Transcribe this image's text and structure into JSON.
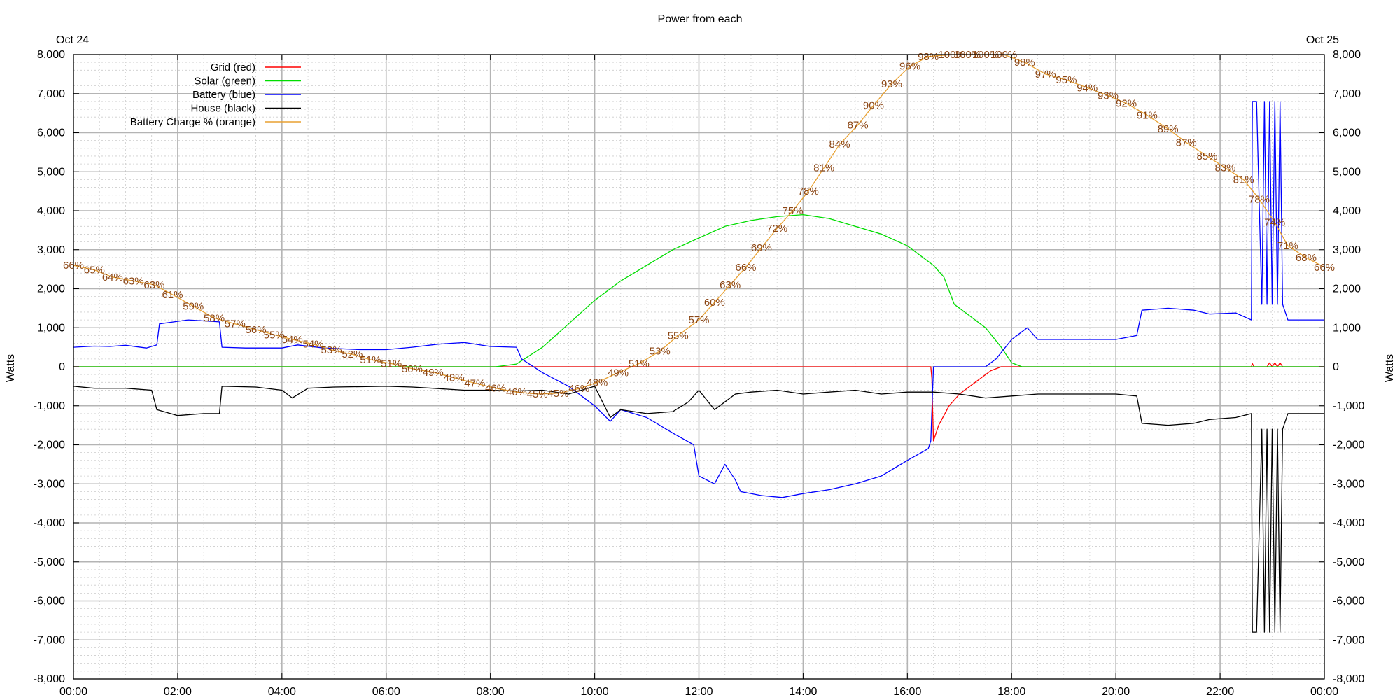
{
  "chart_data": {
    "type": "line",
    "title": "Power from each",
    "date_left": "Oct 24",
    "date_right": "Oct 25",
    "ylabel_left": "Watts",
    "ylabel_right": "Watts",
    "xlim": [
      0,
      24
    ],
    "ylim": [
      -8000,
      8000
    ],
    "x_ticks": [
      {
        "v": 0,
        "label": "00:00"
      },
      {
        "v": 2,
        "label": "02:00"
      },
      {
        "v": 4,
        "label": "04:00"
      },
      {
        "v": 6,
        "label": "06:00"
      },
      {
        "v": 8,
        "label": "08:00"
      },
      {
        "v": 10,
        "label": "10:00"
      },
      {
        "v": 12,
        "label": "12:00"
      },
      {
        "v": 14,
        "label": "14:00"
      },
      {
        "v": 16,
        "label": "16:00"
      },
      {
        "v": 18,
        "label": "18:00"
      },
      {
        "v": 20,
        "label": "20:00"
      },
      {
        "v": 22,
        "label": "22:00"
      },
      {
        "v": 24,
        "label": "00:00"
      }
    ],
    "y_ticks": [
      {
        "v": 8000,
        "label": "8,000"
      },
      {
        "v": 7000,
        "label": "7,000"
      },
      {
        "v": 6000,
        "label": "6,000"
      },
      {
        "v": 5000,
        "label": "5,000"
      },
      {
        "v": 4000,
        "label": "4,000"
      },
      {
        "v": 3000,
        "label": "3,000"
      },
      {
        "v": 2000,
        "label": "2,000"
      },
      {
        "v": 1000,
        "label": "1,000"
      },
      {
        "v": 0,
        "label": "0"
      },
      {
        "v": -1000,
        "label": "-1,000"
      },
      {
        "v": -2000,
        "label": "-2,000"
      },
      {
        "v": -3000,
        "label": "-3,000"
      },
      {
        "v": -4000,
        "label": "-4,000"
      },
      {
        "v": -5000,
        "label": "-5,000"
      },
      {
        "v": -6000,
        "label": "-6,000"
      },
      {
        "v": -7000,
        "label": "-7,000"
      },
      {
        "v": -8000,
        "label": "-8,000"
      }
    ],
    "grid": true,
    "legend_placement": "top-left",
    "series": [
      {
        "name": "Grid (red)",
        "color": "#ff0000",
        "points": [
          [
            0,
            0
          ],
          [
            16.45,
            0
          ],
          [
            16.47,
            -300
          ],
          [
            16.5,
            -1900
          ],
          [
            16.6,
            -1500
          ],
          [
            16.8,
            -1000
          ],
          [
            17,
            -700
          ],
          [
            17.3,
            -400
          ],
          [
            17.6,
            -100
          ],
          [
            17.8,
            0
          ],
          [
            22.6,
            0
          ],
          [
            22.62,
            80
          ],
          [
            22.65,
            0
          ],
          [
            22.9,
            0
          ],
          [
            22.95,
            100
          ],
          [
            23,
            0
          ],
          [
            23.05,
            100
          ],
          [
            23.1,
            0
          ],
          [
            23.15,
            100
          ],
          [
            23.2,
            0
          ],
          [
            24,
            0
          ]
        ]
      },
      {
        "name": "Solar (green)",
        "color": "#00dd00",
        "points": [
          [
            0,
            0
          ],
          [
            8.1,
            0
          ],
          [
            8.5,
            70
          ],
          [
            9,
            500
          ],
          [
            9.5,
            1100
          ],
          [
            10,
            1700
          ],
          [
            10.5,
            2200
          ],
          [
            11,
            2600
          ],
          [
            11.5,
            3000
          ],
          [
            12,
            3300
          ],
          [
            12.5,
            3600
          ],
          [
            13,
            3750
          ],
          [
            13.5,
            3850
          ],
          [
            14,
            3900
          ],
          [
            14.5,
            3800
          ],
          [
            15,
            3600
          ],
          [
            15.5,
            3400
          ],
          [
            16,
            3100
          ],
          [
            16.5,
            2600
          ],
          [
            16.7,
            2300
          ],
          [
            16.9,
            1600
          ],
          [
            17.2,
            1300
          ],
          [
            17.5,
            1000
          ],
          [
            17.8,
            500
          ],
          [
            18,
            100
          ],
          [
            18.2,
            0
          ],
          [
            24,
            0
          ]
        ]
      },
      {
        "name": "Battery (blue)",
        "color": "#0000ff",
        "points": [
          [
            0,
            500
          ],
          [
            0.4,
            530
          ],
          [
            0.7,
            520
          ],
          [
            1,
            550
          ],
          [
            1.4,
            480
          ],
          [
            1.6,
            560
          ],
          [
            1.65,
            1100
          ],
          [
            2.2,
            1200
          ],
          [
            2.8,
            1150
          ],
          [
            2.85,
            500
          ],
          [
            3.3,
            480
          ],
          [
            4,
            480
          ],
          [
            4.3,
            560
          ],
          [
            4.8,
            480
          ],
          [
            5.5,
            440
          ],
          [
            6,
            440
          ],
          [
            6.5,
            500
          ],
          [
            7,
            580
          ],
          [
            7.5,
            620
          ],
          [
            8,
            520
          ],
          [
            8.5,
            500
          ],
          [
            8.6,
            200
          ],
          [
            9,
            -150
          ],
          [
            9.5,
            -500
          ],
          [
            10,
            -1000
          ],
          [
            10.3,
            -1400
          ],
          [
            10.5,
            -1100
          ],
          [
            11,
            -1300
          ],
          [
            11.5,
            -1700
          ],
          [
            11.9,
            -2000
          ],
          [
            12,
            -2800
          ],
          [
            12.3,
            -3000
          ],
          [
            12.5,
            -2500
          ],
          [
            12.7,
            -2900
          ],
          [
            12.8,
            -3200
          ],
          [
            13.2,
            -3300
          ],
          [
            13.6,
            -3350
          ],
          [
            14,
            -3250
          ],
          [
            14.5,
            -3150
          ],
          [
            15,
            -3000
          ],
          [
            15.5,
            -2800
          ],
          [
            16,
            -2400
          ],
          [
            16.4,
            -2100
          ],
          [
            16.45,
            -1900
          ],
          [
            16.5,
            0
          ],
          [
            17.5,
            0
          ],
          [
            17.7,
            200
          ],
          [
            18,
            700
          ],
          [
            18.3,
            1000
          ],
          [
            18.5,
            700
          ],
          [
            19,
            700
          ],
          [
            20,
            700
          ],
          [
            20.4,
            800
          ],
          [
            20.5,
            1450
          ],
          [
            21,
            1500
          ],
          [
            21.5,
            1450
          ],
          [
            21.8,
            1350
          ],
          [
            22.3,
            1380
          ],
          [
            22.6,
            1200
          ],
          [
            22.62,
            6800
          ],
          [
            22.7,
            6800
          ],
          [
            22.8,
            1600
          ],
          [
            22.85,
            6800
          ],
          [
            22.9,
            1600
          ],
          [
            22.95,
            6800
          ],
          [
            23,
            1600
          ],
          [
            23.05,
            6800
          ],
          [
            23.1,
            1600
          ],
          [
            23.15,
            6800
          ],
          [
            23.2,
            1600
          ],
          [
            23.3,
            1200
          ],
          [
            24,
            1200
          ]
        ]
      },
      {
        "name": "House (black)",
        "color": "#000000",
        "points": [
          [
            0,
            -500
          ],
          [
            0.4,
            -550
          ],
          [
            1,
            -550
          ],
          [
            1.5,
            -600
          ],
          [
            1.6,
            -1100
          ],
          [
            2,
            -1250
          ],
          [
            2.5,
            -1200
          ],
          [
            2.8,
            -1200
          ],
          [
            2.85,
            -500
          ],
          [
            3.5,
            -520
          ],
          [
            4,
            -600
          ],
          [
            4.2,
            -800
          ],
          [
            4.5,
            -550
          ],
          [
            5,
            -520
          ],
          [
            6,
            -500
          ],
          [
            6.5,
            -520
          ],
          [
            7,
            -560
          ],
          [
            7.5,
            -600
          ],
          [
            8,
            -600
          ],
          [
            8.5,
            -620
          ],
          [
            9,
            -600
          ],
          [
            9.5,
            -700
          ],
          [
            10,
            -500
          ],
          [
            10.3,
            -1300
          ],
          [
            10.5,
            -1100
          ],
          [
            11,
            -1200
          ],
          [
            11.5,
            -1150
          ],
          [
            11.8,
            -900
          ],
          [
            12,
            -600
          ],
          [
            12.3,
            -1100
          ],
          [
            12.5,
            -900
          ],
          [
            12.7,
            -700
          ],
          [
            13,
            -650
          ],
          [
            13.5,
            -600
          ],
          [
            14,
            -700
          ],
          [
            14.5,
            -650
          ],
          [
            15,
            -600
          ],
          [
            15.5,
            -700
          ],
          [
            16,
            -650
          ],
          [
            16.5,
            -650
          ],
          [
            17,
            -700
          ],
          [
            17.5,
            -800
          ],
          [
            18,
            -750
          ],
          [
            18.5,
            -700
          ],
          [
            19,
            -700
          ],
          [
            20,
            -700
          ],
          [
            20.4,
            -750
          ],
          [
            20.5,
            -1450
          ],
          [
            21,
            -1500
          ],
          [
            21.5,
            -1450
          ],
          [
            21.8,
            -1350
          ],
          [
            22.3,
            -1300
          ],
          [
            22.6,
            -1200
          ],
          [
            22.62,
            -6800
          ],
          [
            22.7,
            -6800
          ],
          [
            22.8,
            -1600
          ],
          [
            22.85,
            -6800
          ],
          [
            22.9,
            -1600
          ],
          [
            22.95,
            -6800
          ],
          [
            23,
            -1600
          ],
          [
            23.05,
            -6800
          ],
          [
            23.1,
            -1600
          ],
          [
            23.15,
            -6800
          ],
          [
            23.2,
            -1600
          ],
          [
            23.3,
            -1200
          ],
          [
            24,
            -1200
          ]
        ]
      },
      {
        "name": "Battery Charge % (orange)",
        "color": "#e8a030",
        "labels": [
          [
            0,
            2600,
            "66%"
          ],
          [
            0.4,
            2480,
            "65%"
          ],
          [
            0.75,
            2300,
            "64%"
          ],
          [
            1.15,
            2200,
            "63%"
          ],
          [
            1.55,
            2100,
            "63%"
          ],
          [
            1.9,
            1850,
            "61%"
          ],
          [
            2.3,
            1550,
            "59%"
          ],
          [
            2.7,
            1250,
            "58%"
          ],
          [
            3.1,
            1100,
            "57%"
          ],
          [
            3.5,
            950,
            "56%"
          ],
          [
            3.85,
            820,
            "55%"
          ],
          [
            4.2,
            700,
            "54%"
          ],
          [
            4.6,
            580,
            "54%"
          ],
          [
            4.95,
            430,
            "53%"
          ],
          [
            5.35,
            320,
            "52%"
          ],
          [
            5.7,
            180,
            "51%"
          ],
          [
            6.1,
            80,
            "51%"
          ],
          [
            6.5,
            -50,
            "50%"
          ],
          [
            6.9,
            -140,
            "49%"
          ],
          [
            7.3,
            -280,
            "48%"
          ],
          [
            7.7,
            -420,
            "47%"
          ],
          [
            8.1,
            -550,
            "46%"
          ],
          [
            8.5,
            -650,
            "46%"
          ],
          [
            8.9,
            -700,
            "45%"
          ],
          [
            9.3,
            -680,
            "45%"
          ],
          [
            9.7,
            -560,
            "46%"
          ],
          [
            10.05,
            -400,
            "48%"
          ],
          [
            10.45,
            -150,
            "49%"
          ],
          [
            10.85,
            80,
            "51%"
          ],
          [
            11.25,
            400,
            "53%"
          ],
          [
            11.6,
            800,
            "55%"
          ],
          [
            12,
            1200,
            "57%"
          ],
          [
            12.3,
            1650,
            "60%"
          ],
          [
            12.6,
            2100,
            "63%"
          ],
          [
            12.9,
            2550,
            "66%"
          ],
          [
            13.2,
            3050,
            "69%"
          ],
          [
            13.5,
            3550,
            "72%"
          ],
          [
            13.8,
            4000,
            "75%"
          ],
          [
            14.1,
            4500,
            "78%"
          ],
          [
            14.4,
            5100,
            "81%"
          ],
          [
            14.7,
            5700,
            "84%"
          ],
          [
            15.05,
            6200,
            "87%"
          ],
          [
            15.35,
            6700,
            "90%"
          ],
          [
            15.7,
            7250,
            "93%"
          ],
          [
            16.05,
            7700,
            "96%"
          ],
          [
            16.4,
            7950,
            "98%"
          ],
          [
            16.85,
            8000,
            "100%"
          ],
          [
            17.15,
            8000,
            "100%"
          ],
          [
            17.5,
            8000,
            "100%"
          ],
          [
            17.85,
            8000,
            "100%"
          ],
          [
            18.25,
            7800,
            "98%"
          ],
          [
            18.65,
            7500,
            "97%"
          ],
          [
            19.05,
            7350,
            "95%"
          ],
          [
            19.45,
            7150,
            "94%"
          ],
          [
            19.85,
            6950,
            "93%"
          ],
          [
            20.2,
            6750,
            "92%"
          ],
          [
            20.6,
            6450,
            "91%"
          ],
          [
            21,
            6100,
            "89%"
          ],
          [
            21.35,
            5750,
            "87%"
          ],
          [
            21.75,
            5400,
            "85%"
          ],
          [
            22.1,
            5100,
            "83%"
          ],
          [
            22.45,
            4800,
            "81%"
          ],
          [
            22.75,
            4300,
            "78%"
          ],
          [
            23.05,
            3700,
            "74%"
          ],
          [
            23.3,
            3100,
            "71%"
          ],
          [
            23.65,
            2800,
            "68%"
          ],
          [
            24,
            2550,
            "66%"
          ]
        ]
      }
    ]
  }
}
